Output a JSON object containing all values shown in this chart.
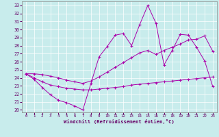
{
  "xlabel": "Windchill (Refroidissement éolien,°C)",
  "xlim": [
    -0.5,
    23.5
  ],
  "ylim": [
    19.7,
    33.5
  ],
  "yticks": [
    20,
    21,
    22,
    23,
    24,
    25,
    26,
    27,
    28,
    29,
    30,
    31,
    32,
    33
  ],
  "xticks": [
    0,
    1,
    2,
    3,
    4,
    5,
    6,
    7,
    8,
    9,
    10,
    11,
    12,
    13,
    14,
    15,
    16,
    17,
    18,
    19,
    20,
    21,
    22,
    23
  ],
  "bg_color": "#c8ecec",
  "grid_color": "#ffffff",
  "line_color": "#aa00aa",
  "line1_x": [
    0,
    1,
    2,
    3,
    4,
    5,
    6,
    7,
    8,
    9,
    10,
    11,
    12,
    13,
    14,
    15,
    16,
    17,
    18,
    19,
    20,
    21,
    22,
    23
  ],
  "line1_y": [
    24.5,
    23.8,
    22.8,
    21.9,
    21.2,
    20.9,
    20.5,
    20.0,
    23.3,
    26.6,
    27.9,
    29.3,
    29.5,
    28.0,
    30.6,
    33.0,
    30.8,
    25.6,
    27.4,
    29.4,
    29.3,
    27.8,
    26.1,
    22.9
  ],
  "line2_x": [
    0,
    1,
    2,
    3,
    4,
    5,
    6,
    7,
    8,
    9,
    10,
    11,
    12,
    13,
    14,
    15,
    16,
    17,
    18,
    19,
    20,
    21,
    22,
    23
  ],
  "line2_y": [
    24.5,
    24.0,
    23.5,
    23.1,
    22.9,
    22.7,
    22.6,
    22.5,
    22.5,
    22.6,
    22.7,
    22.8,
    22.9,
    23.1,
    23.2,
    23.3,
    23.4,
    23.5,
    23.6,
    23.7,
    23.8,
    23.9,
    24.0,
    24.1
  ],
  "line3_x": [
    0,
    1,
    2,
    3,
    4,
    5,
    6,
    7,
    8,
    9,
    10,
    11,
    12,
    13,
    14,
    15,
    16,
    17,
    18,
    19,
    20,
    21,
    22,
    23
  ],
  "line3_y": [
    24.5,
    24.5,
    24.4,
    24.2,
    24.0,
    23.7,
    23.5,
    23.3,
    23.6,
    24.1,
    24.7,
    25.3,
    25.9,
    26.5,
    27.1,
    27.4,
    26.9,
    27.4,
    27.8,
    28.2,
    28.7,
    28.8,
    29.2,
    27.3
  ]
}
